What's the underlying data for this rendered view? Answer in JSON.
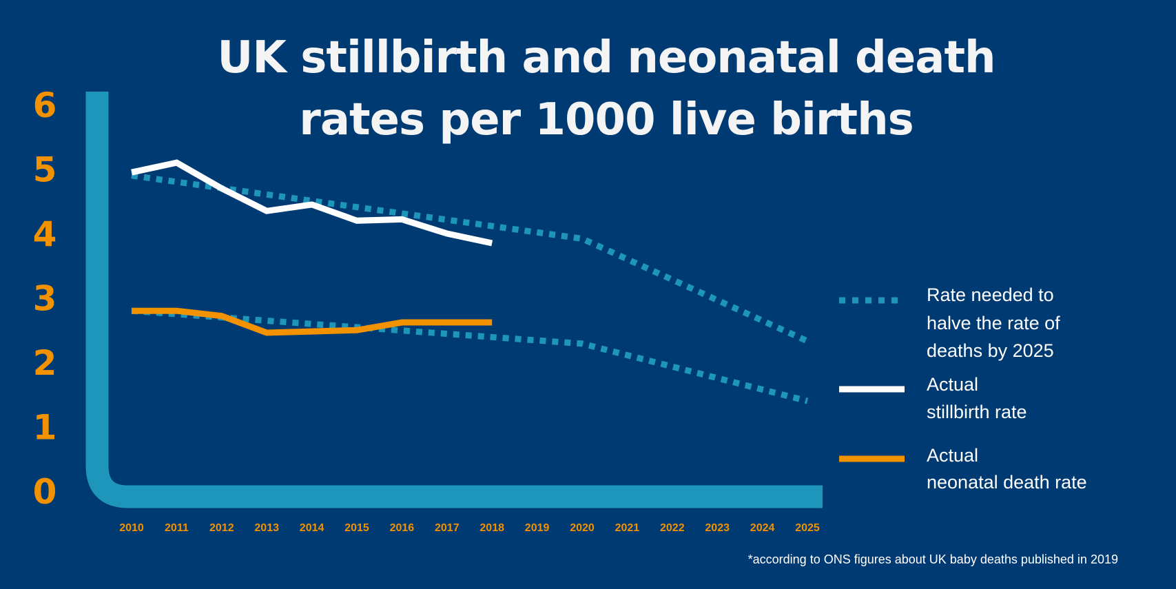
{
  "colors": {
    "background": "#003a73",
    "axis": "#1e96bc",
    "target": "#1e96bc",
    "stillbirth": "#ffffff",
    "neonatal": "#f39200",
    "ticks": "#f39200"
  },
  "chart_data": {
    "type": "line",
    "title_lines": [
      "UK stillbirth and neonatal death",
      "rates per 1000 live births"
    ],
    "ylim": [
      0,
      6
    ],
    "yticks": [
      "0",
      "1",
      "2",
      "3",
      "4",
      "5",
      "6"
    ],
    "xticks": [
      "2010",
      "2011",
      "2012",
      "2013",
      "2014",
      "2015",
      "2016",
      "2017",
      "2018",
      "2019",
      "2020",
      "2021",
      "2022",
      "2023",
      "2024",
      "2025"
    ],
    "grid": false,
    "legend_placement": "right",
    "series": [
      {
        "name": "Rate needed to halve the rate of deaths by 2025",
        "style": "dotted",
        "group": "stillbirth-target",
        "x": [
          2010,
          2020,
          2025
        ],
        "values": [
          4.9,
          3.92,
          2.33
        ]
      },
      {
        "name": "Rate needed to halve the rate of deaths by 2025",
        "style": "dotted",
        "group": "neonatal-target",
        "x": [
          2010,
          2020,
          2025
        ],
        "values": [
          2.8,
          2.29,
          1.4
        ]
      },
      {
        "name": "Actual stillbirth rate",
        "style": "solid",
        "x": [
          2010,
          2011,
          2012,
          2013,
          2014,
          2015,
          2016,
          2017,
          2018
        ],
        "values": [
          4.95,
          5.1,
          4.7,
          4.35,
          4.45,
          4.2,
          4.22,
          4.0,
          3.85
        ]
      },
      {
        "name": "Actual neonatal death rate",
        "style": "solid",
        "x": [
          2010,
          2011,
          2012,
          2013,
          2014,
          2015,
          2016,
          2017,
          2018
        ],
        "values": [
          2.8,
          2.8,
          2.72,
          2.46,
          2.48,
          2.5,
          2.62,
          2.62,
          2.62
        ]
      }
    ]
  },
  "legend": {
    "target_lines": [
      "Rate needed to",
      "halve the rate of",
      "deaths by 2025"
    ],
    "stillbirth_lines": [
      "Actual",
      "stillbirth rate"
    ],
    "neonatal_lines": [
      "Actual",
      "neonatal death rate"
    ]
  },
  "footnote": "*according to ONS figures about UK baby deaths published in 2019"
}
